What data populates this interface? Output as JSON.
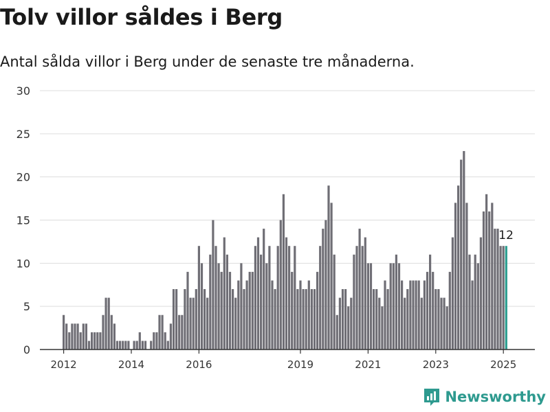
{
  "title": "Tolv villor såldes i Berg",
  "subtitle": "Antal sålda villor i Berg under de senaste tre månaderna.",
  "brand": {
    "name": "Newsworthy",
    "color": "#2e9a8f",
    "icon": "newsworthy-logo-icon"
  },
  "colors": {
    "bar": "#6f6e75",
    "highlight": "#2a9d8f",
    "grid": "#dddddd",
    "axis": "#333333"
  },
  "chart_data": {
    "type": "bar",
    "title": "Tolv villor såldes i Berg",
    "subtitle": "Antal sålda villor i Berg under de senaste tre månaderna.",
    "xlabel": "",
    "ylabel": "",
    "ylim": [
      0,
      30
    ],
    "yticks": [
      0,
      5,
      10,
      15,
      20,
      25,
      30
    ],
    "grid": true,
    "x_start": "2012-01",
    "x_tick_labels": [
      "2012",
      "2014",
      "2016",
      "2019",
      "2021",
      "2023",
      "2025"
    ],
    "x_tick_positions": [
      "2012-01",
      "2014-01",
      "2016-01",
      "2019-01",
      "2021-01",
      "2023-01",
      "2025-01"
    ],
    "values": [
      4,
      3,
      2,
      3,
      3,
      3,
      2,
      3,
      3,
      1,
      2,
      2,
      2,
      2,
      4,
      6,
      6,
      4,
      3,
      1,
      1,
      1,
      1,
      1,
      0,
      1,
      1,
      2,
      1,
      1,
      0,
      1,
      2,
      2,
      4,
      4,
      2,
      1,
      3,
      7,
      7,
      4,
      4,
      7,
      9,
      6,
      6,
      7,
      12,
      10,
      7,
      6,
      11,
      15,
      12,
      10,
      9,
      13,
      11,
      9,
      7,
      6,
      8,
      10,
      7,
      8,
      9,
      9,
      12,
      13,
      11,
      14,
      10,
      12,
      8,
      7,
      12,
      15,
      18,
      13,
      12,
      9,
      12,
      7,
      8,
      7,
      7,
      8,
      7,
      7,
      9,
      12,
      14,
      15,
      19,
      17,
      11,
      4,
      6,
      7,
      7,
      5,
      6,
      11,
      12,
      14,
      12,
      13,
      10,
      10,
      7,
      7,
      6,
      5,
      8,
      7,
      10,
      10,
      11,
      10,
      8,
      6,
      7,
      8,
      8,
      8,
      8,
      6,
      8,
      9,
      11,
      9,
      7,
      7,
      6,
      6,
      5,
      9,
      13,
      17,
      19,
      22,
      23,
      17,
      11,
      8,
      11,
      10,
      13,
      16,
      18,
      16,
      17,
      14,
      14,
      12,
      12,
      12
    ],
    "highlight_last": true,
    "annotations": [
      {
        "label": "12",
        "value": 12,
        "position": "last"
      }
    ]
  }
}
